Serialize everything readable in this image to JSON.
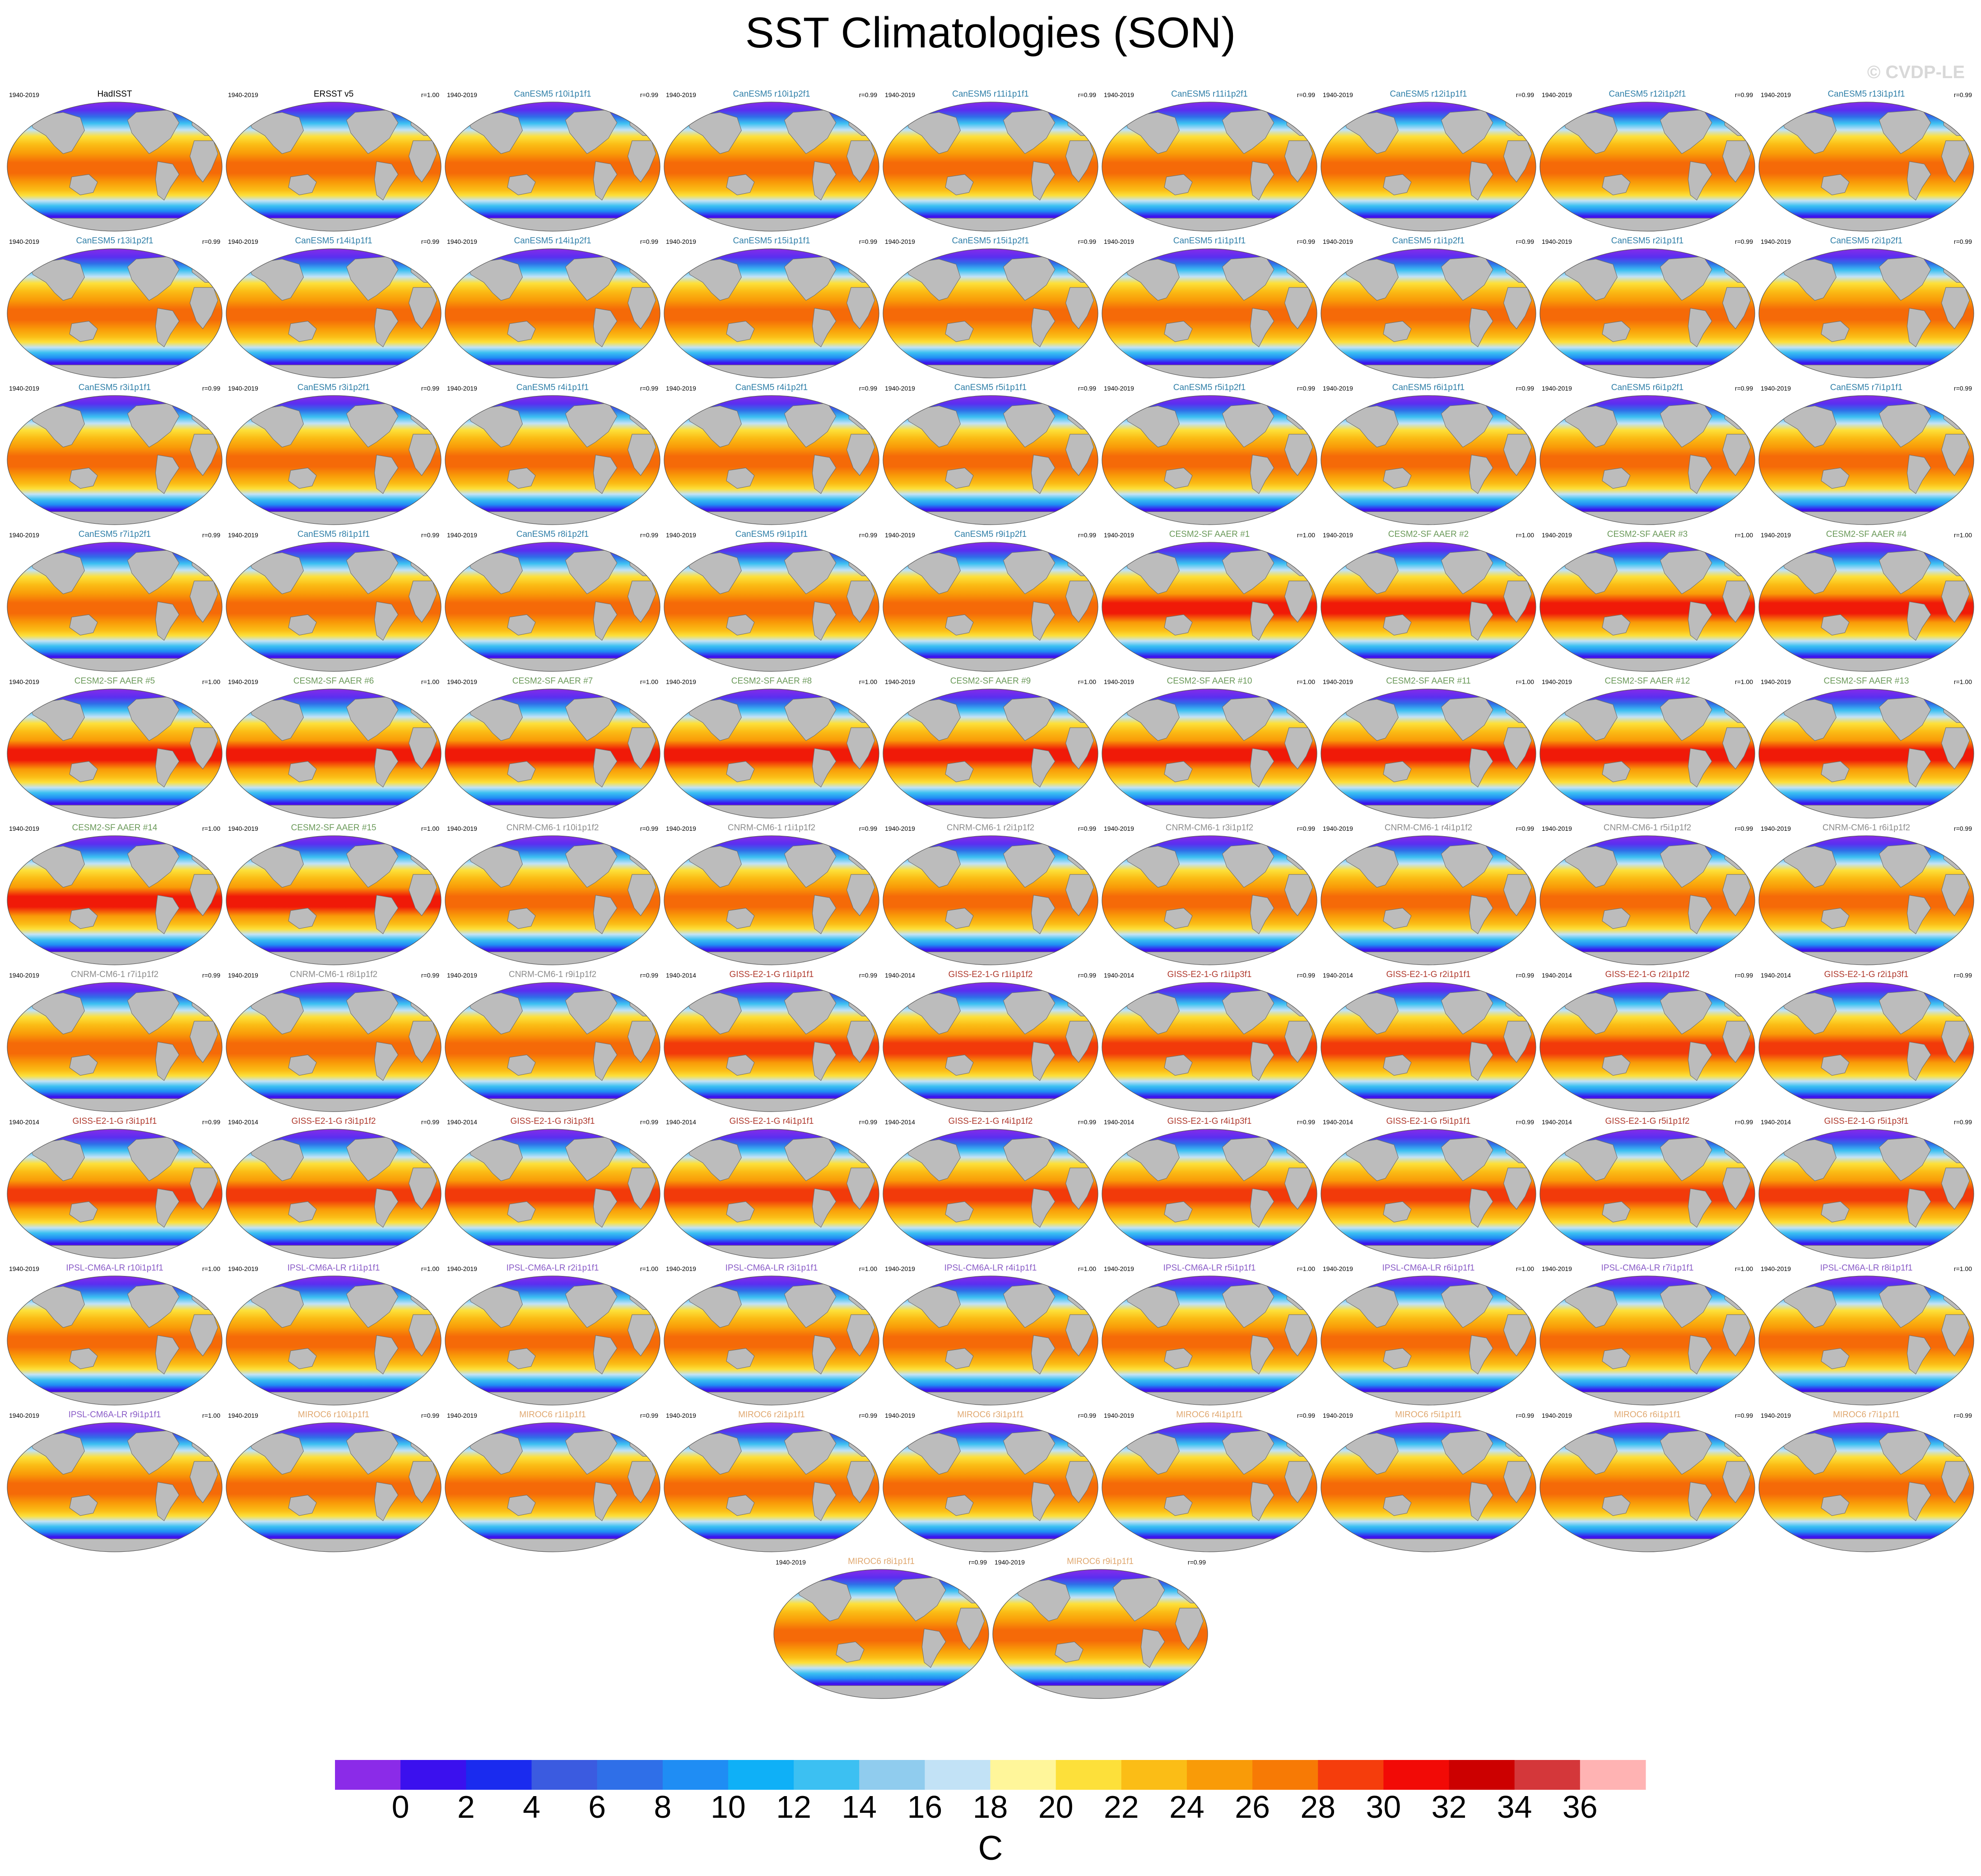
{
  "title": "SST Climatologies (SON)",
  "watermark": "© CVDP-LE",
  "colors": {
    "HadISST": "#000000",
    "ERSST v5": "#000000",
    "CanESM5": "#2f7fa8",
    "CESM2-SF AAER": "#6b9a5a",
    "CNRM-CM6-1": "#8c8c8c",
    "GISS-E2-1-G": "#b03a2e",
    "IPSL-CM6A-LR": "#8a5cc7",
    "MIROC6": "#e0a870"
  },
  "colorbar": {
    "units": "C",
    "tick_labels": [
      "0",
      "2",
      "4",
      "6",
      "8",
      "10",
      "12",
      "14",
      "16",
      "18",
      "20",
      "22",
      "24",
      "26",
      "28",
      "30",
      "32",
      "34",
      "36"
    ],
    "colors": [
      "#8b2be8",
      "#3b10ee",
      "#1a2bef",
      "#3b5be0",
      "#2f6fe8",
      "#1f8df4",
      "#0fb0f7",
      "#3cc0f2",
      "#90ccee",
      "#c2e2f6",
      "#fff69a",
      "#fde03a",
      "#fbbd16",
      "#f99b08",
      "#f77a05",
      "#f53d0c",
      "#f20a06",
      "#cc0000",
      "#d4373a",
      "#ffb3b3"
    ]
  },
  "panels": [
    {
      "title": "HadISST",
      "model": "HadISST",
      "period": "1940-2019",
      "r": ""
    },
    {
      "title": "ERSST v5",
      "model": "ERSST v5",
      "period": "1940-2019",
      "r": "r=1.00"
    },
    {
      "title": "CanESM5 r10i1p1f1",
      "model": "CanESM5",
      "period": "1940-2019",
      "r": "r=0.99"
    },
    {
      "title": "CanESM5 r10i1p2f1",
      "model": "CanESM5",
      "period": "1940-2019",
      "r": "r=0.99"
    },
    {
      "title": "CanESM5 r11i1p1f1",
      "model": "CanESM5",
      "period": "1940-2019",
      "r": "r=0.99"
    },
    {
      "title": "CanESM5 r11i1p2f1",
      "model": "CanESM5",
      "period": "1940-2019",
      "r": "r=0.99"
    },
    {
      "title": "CanESM5 r12i1p1f1",
      "model": "CanESM5",
      "period": "1940-2019",
      "r": "r=0.99"
    },
    {
      "title": "CanESM5 r12i1p2f1",
      "model": "CanESM5",
      "period": "1940-2019",
      "r": "r=0.99"
    },
    {
      "title": "CanESM5 r13i1p1f1",
      "model": "CanESM5",
      "period": "1940-2019",
      "r": "r=0.99"
    },
    {
      "title": "CanESM5 r13i1p2f1",
      "model": "CanESM5",
      "period": "1940-2019",
      "r": "r=0.99"
    },
    {
      "title": "CanESM5 r14i1p1f1",
      "model": "CanESM5",
      "period": "1940-2019",
      "r": "r=0.99"
    },
    {
      "title": "CanESM5 r14i1p2f1",
      "model": "CanESM5",
      "period": "1940-2019",
      "r": "r=0.99"
    },
    {
      "title": "CanESM5 r15i1p1f1",
      "model": "CanESM5",
      "period": "1940-2019",
      "r": "r=0.99"
    },
    {
      "title": "CanESM5 r15i1p2f1",
      "model": "CanESM5",
      "period": "1940-2019",
      "r": "r=0.99"
    },
    {
      "title": "CanESM5 r1i1p1f1",
      "model": "CanESM5",
      "period": "1940-2019",
      "r": "r=0.99"
    },
    {
      "title": "CanESM5 r1i1p2f1",
      "model": "CanESM5",
      "period": "1940-2019",
      "r": "r=0.99"
    },
    {
      "title": "CanESM5 r2i1p1f1",
      "model": "CanESM5",
      "period": "1940-2019",
      "r": "r=0.99"
    },
    {
      "title": "CanESM5 r2i1p2f1",
      "model": "CanESM5",
      "period": "1940-2019",
      "r": "r=0.99"
    },
    {
      "title": "CanESM5 r3i1p1f1",
      "model": "CanESM5",
      "period": "1940-2019",
      "r": "r=0.99"
    },
    {
      "title": "CanESM5 r3i1p2f1",
      "model": "CanESM5",
      "period": "1940-2019",
      "r": "r=0.99"
    },
    {
      "title": "CanESM5 r4i1p1f1",
      "model": "CanESM5",
      "period": "1940-2019",
      "r": "r=0.99"
    },
    {
      "title": "CanESM5 r4i1p2f1",
      "model": "CanESM5",
      "period": "1940-2019",
      "r": "r=0.99"
    },
    {
      "title": "CanESM5 r5i1p1f1",
      "model": "CanESM5",
      "period": "1940-2019",
      "r": "r=0.99"
    },
    {
      "title": "CanESM5 r5i1p2f1",
      "model": "CanESM5",
      "period": "1940-2019",
      "r": "r=0.99"
    },
    {
      "title": "CanESM5 r6i1p1f1",
      "model": "CanESM5",
      "period": "1940-2019",
      "r": "r=0.99"
    },
    {
      "title": "CanESM5 r6i1p2f1",
      "model": "CanESM5",
      "period": "1940-2019",
      "r": "r=0.99"
    },
    {
      "title": "CanESM5 r7i1p1f1",
      "model": "CanESM5",
      "period": "1940-2019",
      "r": "r=0.99"
    },
    {
      "title": "CanESM5 r7i1p2f1",
      "model": "CanESM5",
      "period": "1940-2019",
      "r": "r=0.99"
    },
    {
      "title": "CanESM5 r8i1p1f1",
      "model": "CanESM5",
      "period": "1940-2019",
      "r": "r=0.99"
    },
    {
      "title": "CanESM5 r8i1p2f1",
      "model": "CanESM5",
      "period": "1940-2019",
      "r": "r=0.99"
    },
    {
      "title": "CanESM5 r9i1p1f1",
      "model": "CanESM5",
      "period": "1940-2019",
      "r": "r=0.99"
    },
    {
      "title": "CanESM5 r9i1p2f1",
      "model": "CanESM5",
      "period": "1940-2019",
      "r": "r=0.99"
    },
    {
      "title": "CESM2-SF AAER #1",
      "model": "CESM2-SF AAER",
      "period": "1940-2019",
      "r": "r=1.00"
    },
    {
      "title": "CESM2-SF AAER #2",
      "model": "CESM2-SF AAER",
      "period": "1940-2019",
      "r": "r=1.00"
    },
    {
      "title": "CESM2-SF AAER #3",
      "model": "CESM2-SF AAER",
      "period": "1940-2019",
      "r": "r=1.00"
    },
    {
      "title": "CESM2-SF AAER #4",
      "model": "CESM2-SF AAER",
      "period": "1940-2019",
      "r": "r=1.00"
    },
    {
      "title": "CESM2-SF AAER #5",
      "model": "CESM2-SF AAER",
      "period": "1940-2019",
      "r": "r=1.00"
    },
    {
      "title": "CESM2-SF AAER #6",
      "model": "CESM2-SF AAER",
      "period": "1940-2019",
      "r": "r=1.00"
    },
    {
      "title": "CESM2-SF AAER #7",
      "model": "CESM2-SF AAER",
      "period": "1940-2019",
      "r": "r=1.00"
    },
    {
      "title": "CESM2-SF AAER #8",
      "model": "CESM2-SF AAER",
      "period": "1940-2019",
      "r": "r=1.00"
    },
    {
      "title": "CESM2-SF AAER #9",
      "model": "CESM2-SF AAER",
      "period": "1940-2019",
      "r": "r=1.00"
    },
    {
      "title": "CESM2-SF AAER #10",
      "model": "CESM2-SF AAER",
      "period": "1940-2019",
      "r": "r=1.00"
    },
    {
      "title": "CESM2-SF AAER #11",
      "model": "CESM2-SF AAER",
      "period": "1940-2019",
      "r": "r=1.00"
    },
    {
      "title": "CESM2-SF AAER #12",
      "model": "CESM2-SF AAER",
      "period": "1940-2019",
      "r": "r=1.00"
    },
    {
      "title": "CESM2-SF AAER #13",
      "model": "CESM2-SF AAER",
      "period": "1940-2019",
      "r": "r=1.00"
    },
    {
      "title": "CESM2-SF AAER #14",
      "model": "CESM2-SF AAER",
      "period": "1940-2019",
      "r": "r=1.00"
    },
    {
      "title": "CESM2-SF AAER #15",
      "model": "CESM2-SF AAER",
      "period": "1940-2019",
      "r": "r=1.00"
    },
    {
      "title": "CNRM-CM6-1 r10i1p1f2",
      "model": "CNRM-CM6-1",
      "period": "1940-2019",
      "r": "r=0.99"
    },
    {
      "title": "CNRM-CM6-1 r1i1p1f2",
      "model": "CNRM-CM6-1",
      "period": "1940-2019",
      "r": "r=0.99"
    },
    {
      "title": "CNRM-CM6-1 r2i1p1f2",
      "model": "CNRM-CM6-1",
      "period": "1940-2019",
      "r": "r=0.99"
    },
    {
      "title": "CNRM-CM6-1 r3i1p1f2",
      "model": "CNRM-CM6-1",
      "period": "1940-2019",
      "r": "r=0.99"
    },
    {
      "title": "CNRM-CM6-1 r4i1p1f2",
      "model": "CNRM-CM6-1",
      "period": "1940-2019",
      "r": "r=0.99"
    },
    {
      "title": "CNRM-CM6-1 r5i1p1f2",
      "model": "CNRM-CM6-1",
      "period": "1940-2019",
      "r": "r=0.99"
    },
    {
      "title": "CNRM-CM6-1 r6i1p1f2",
      "model": "CNRM-CM6-1",
      "period": "1940-2019",
      "r": "r=0.99"
    },
    {
      "title": "CNRM-CM6-1 r7i1p1f2",
      "model": "CNRM-CM6-1",
      "period": "1940-2019",
      "r": "r=0.99"
    },
    {
      "title": "CNRM-CM6-1 r8i1p1f2",
      "model": "CNRM-CM6-1",
      "period": "1940-2019",
      "r": "r=0.99"
    },
    {
      "title": "CNRM-CM6-1 r9i1p1f2",
      "model": "CNRM-CM6-1",
      "period": "1940-2019",
      "r": "r=0.99"
    },
    {
      "title": "GISS-E2-1-G r1i1p1f1",
      "model": "GISS-E2-1-G",
      "period": "1940-2014",
      "r": "r=0.99"
    },
    {
      "title": "GISS-E2-1-G r1i1p1f2",
      "model": "GISS-E2-1-G",
      "period": "1940-2014",
      "r": "r=0.99"
    },
    {
      "title": "GISS-E2-1-G r1i1p3f1",
      "model": "GISS-E2-1-G",
      "period": "1940-2014",
      "r": "r=0.99"
    },
    {
      "title": "GISS-E2-1-G r2i1p1f1",
      "model": "GISS-E2-1-G",
      "period": "1940-2014",
      "r": "r=0.99"
    },
    {
      "title": "GISS-E2-1-G r2i1p1f2",
      "model": "GISS-E2-1-G",
      "period": "1940-2014",
      "r": "r=0.99"
    },
    {
      "title": "GISS-E2-1-G r2i1p3f1",
      "model": "GISS-E2-1-G",
      "period": "1940-2014",
      "r": "r=0.99"
    },
    {
      "title": "GISS-E2-1-G r3i1p1f1",
      "model": "GISS-E2-1-G",
      "period": "1940-2014",
      "r": "r=0.99"
    },
    {
      "title": "GISS-E2-1-G r3i1p1f2",
      "model": "GISS-E2-1-G",
      "period": "1940-2014",
      "r": "r=0.99"
    },
    {
      "title": "GISS-E2-1-G r3i1p3f1",
      "model": "GISS-E2-1-G",
      "period": "1940-2014",
      "r": "r=0.99"
    },
    {
      "title": "GISS-E2-1-G r4i1p1f1",
      "model": "GISS-E2-1-G",
      "period": "1940-2014",
      "r": "r=0.99"
    },
    {
      "title": "GISS-E2-1-G r4i1p1f2",
      "model": "GISS-E2-1-G",
      "period": "1940-2014",
      "r": "r=0.99"
    },
    {
      "title": "GISS-E2-1-G r4i1p3f1",
      "model": "GISS-E2-1-G",
      "period": "1940-2014",
      "r": "r=0.99"
    },
    {
      "title": "GISS-E2-1-G r5i1p1f1",
      "model": "GISS-E2-1-G",
      "period": "1940-2014",
      "r": "r=0.99"
    },
    {
      "title": "GISS-E2-1-G r5i1p1f2",
      "model": "GISS-E2-1-G",
      "period": "1940-2014",
      "r": "r=0.99"
    },
    {
      "title": "GISS-E2-1-G r5i1p3f1",
      "model": "GISS-E2-1-G",
      "period": "1940-2014",
      "r": "r=0.99"
    },
    {
      "title": "IPSL-CM6A-LR r10i1p1f1",
      "model": "IPSL-CM6A-LR",
      "period": "1940-2019",
      "r": "r=1.00"
    },
    {
      "title": "IPSL-CM6A-LR r1i1p1f1",
      "model": "IPSL-CM6A-LR",
      "period": "1940-2019",
      "r": "r=1.00"
    },
    {
      "title": "IPSL-CM6A-LR r2i1p1f1",
      "model": "IPSL-CM6A-LR",
      "period": "1940-2019",
      "r": "r=1.00"
    },
    {
      "title": "IPSL-CM6A-LR r3i1p1f1",
      "model": "IPSL-CM6A-LR",
      "period": "1940-2019",
      "r": "r=1.00"
    },
    {
      "title": "IPSL-CM6A-LR r4i1p1f1",
      "model": "IPSL-CM6A-LR",
      "period": "1940-2019",
      "r": "r=1.00"
    },
    {
      "title": "IPSL-CM6A-LR r5i1p1f1",
      "model": "IPSL-CM6A-LR",
      "period": "1940-2019",
      "r": "r=1.00"
    },
    {
      "title": "IPSL-CM6A-LR r6i1p1f1",
      "model": "IPSL-CM6A-LR",
      "period": "1940-2019",
      "r": "r=1.00"
    },
    {
      "title": "IPSL-CM6A-LR r7i1p1f1",
      "model": "IPSL-CM6A-LR",
      "period": "1940-2019",
      "r": "r=1.00"
    },
    {
      "title": "IPSL-CM6A-LR r8i1p1f1",
      "model": "IPSL-CM6A-LR",
      "period": "1940-2019",
      "r": "r=1.00"
    },
    {
      "title": "IPSL-CM6A-LR r9i1p1f1",
      "model": "IPSL-CM6A-LR",
      "period": "1940-2019",
      "r": "r=1.00"
    },
    {
      "title": "MIROC6 r10i1p1f1",
      "model": "MIROC6",
      "period": "1940-2019",
      "r": "r=0.99"
    },
    {
      "title": "MIROC6 r1i1p1f1",
      "model": "MIROC6",
      "period": "1940-2019",
      "r": "r=0.99"
    },
    {
      "title": "MIROC6 r2i1p1f1",
      "model": "MIROC6",
      "period": "1940-2019",
      "r": "r=0.99"
    },
    {
      "title": "MIROC6 r3i1p1f1",
      "model": "MIROC6",
      "period": "1940-2019",
      "r": "r=0.99"
    },
    {
      "title": "MIROC6 r4i1p1f1",
      "model": "MIROC6",
      "period": "1940-2019",
      "r": "r=0.99"
    },
    {
      "title": "MIROC6 r5i1p1f1",
      "model": "MIROC6",
      "period": "1940-2019",
      "r": "r=0.99"
    },
    {
      "title": "MIROC6 r6i1p1f1",
      "model": "MIROC6",
      "period": "1940-2019",
      "r": "r=0.99"
    },
    {
      "title": "MIROC6 r7i1p1f1",
      "model": "MIROC6",
      "period": "1940-2019",
      "r": "r=0.99"
    },
    {
      "title": "MIROC6 r8i1p1f1",
      "model": "MIROC6",
      "period": "1940-2019",
      "r": "r=0.99"
    },
    {
      "title": "MIROC6 r9i1p1f1",
      "model": "MIROC6",
      "period": "1940-2019",
      "r": "r=0.99"
    }
  ],
  "chart_data": {
    "type": "heatmap",
    "title": "SST Climatologies (SON)",
    "projection": "global map panels (one per dataset / ensemble member)",
    "colorbar_levels": [
      0,
      2,
      4,
      6,
      8,
      10,
      12,
      14,
      16,
      18,
      20,
      22,
      24,
      26,
      28,
      30,
      32,
      34,
      36
    ],
    "units": "C",
    "panel_count": 92,
    "legend_placement": "bottom"
  }
}
